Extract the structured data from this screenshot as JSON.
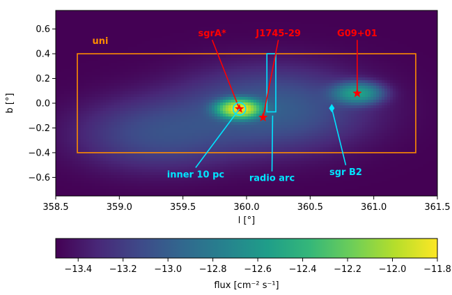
{
  "chart_data": {
    "type": "heatmap",
    "xlabel": "l [°]",
    "ylabel": "b [°]",
    "xlim": [
      358.5,
      361.5
    ],
    "ylim": [
      -0.75,
      0.75
    ],
    "x_ticks": [
      "358.5",
      "359.0",
      "359.5",
      "360.0",
      "360.5",
      "361.0",
      "361.5"
    ],
    "y_ticks": [
      "−0.6",
      "−0.4",
      "−0.2",
      "0.0",
      "0.2",
      "0.4",
      "0.6"
    ],
    "colorbar": {
      "label": "flux [cm⁻² s⁻¹]",
      "range": [
        -13.5,
        -11.8
      ],
      "ticks": [
        "−13.4",
        "−13.2",
        "−13.0",
        "−12.8",
        "−12.6",
        "−12.4",
        "−12.2",
        "−12.0",
        "−11.8"
      ]
    },
    "background_level": -13.5,
    "emission_sources": [
      {
        "l": 359.944,
        "b": -0.046,
        "peak": -11.85,
        "width_deg": 0.09
      },
      {
        "l": 360.87,
        "b": 0.08,
        "peak": -12.55,
        "width_deg": 0.11
      },
      {
        "l": 360.2,
        "b": -0.05,
        "peak": -13.0,
        "width_deg": 0.45
      },
      {
        "l": 359.3,
        "b": -0.25,
        "peak": -13.1,
        "width_deg": 0.4
      }
    ],
    "region_box": {
      "label": "uni",
      "l_min": 358.67,
      "l_max": 361.33,
      "b_min": -0.4,
      "b_max": 0.4,
      "color": "#ff8c00"
    },
    "radio_arc_box": {
      "l_min": 360.16,
      "l_max": 360.23,
      "b_min": -0.07,
      "b_max": 0.4,
      "color": "#00e5ff"
    },
    "markers": [
      {
        "label": "sgrA*",
        "l": 359.944,
        "b": -0.046,
        "symbol": "star",
        "color": "#ff0000",
        "label_l": 359.73,
        "label_b": 0.54
      },
      {
        "label": "J1745-29",
        "l": 360.13,
        "b": -0.115,
        "symbol": "star",
        "color": "#ff0000",
        "label_l": 360.25,
        "label_b": 0.54
      },
      {
        "label": "G09+01",
        "l": 360.87,
        "b": 0.08,
        "symbol": "star",
        "color": "#ff0000",
        "label_l": 360.87,
        "label_b": 0.54
      },
      {
        "label": "sgr B2",
        "l": 360.67,
        "b": -0.04,
        "symbol": "diamond",
        "color": "#00e5ff",
        "label_l": 360.78,
        "label_b": -0.58
      },
      {
        "label": "radio arc",
        "l": 360.205,
        "b": -0.1,
        "symbol": "none",
        "color": "#00e5ff",
        "label_l": 360.2,
        "label_b": -0.63
      },
      {
        "label": "inner 10 pc",
        "l": 359.944,
        "b": -0.046,
        "symbol": "circle",
        "color": "#00e5ff",
        "label_l": 359.6,
        "label_b": -0.6
      }
    ],
    "uni_label": {
      "text": "uni",
      "l": 358.85,
      "b": 0.48,
      "color": "#ff8c00"
    }
  }
}
